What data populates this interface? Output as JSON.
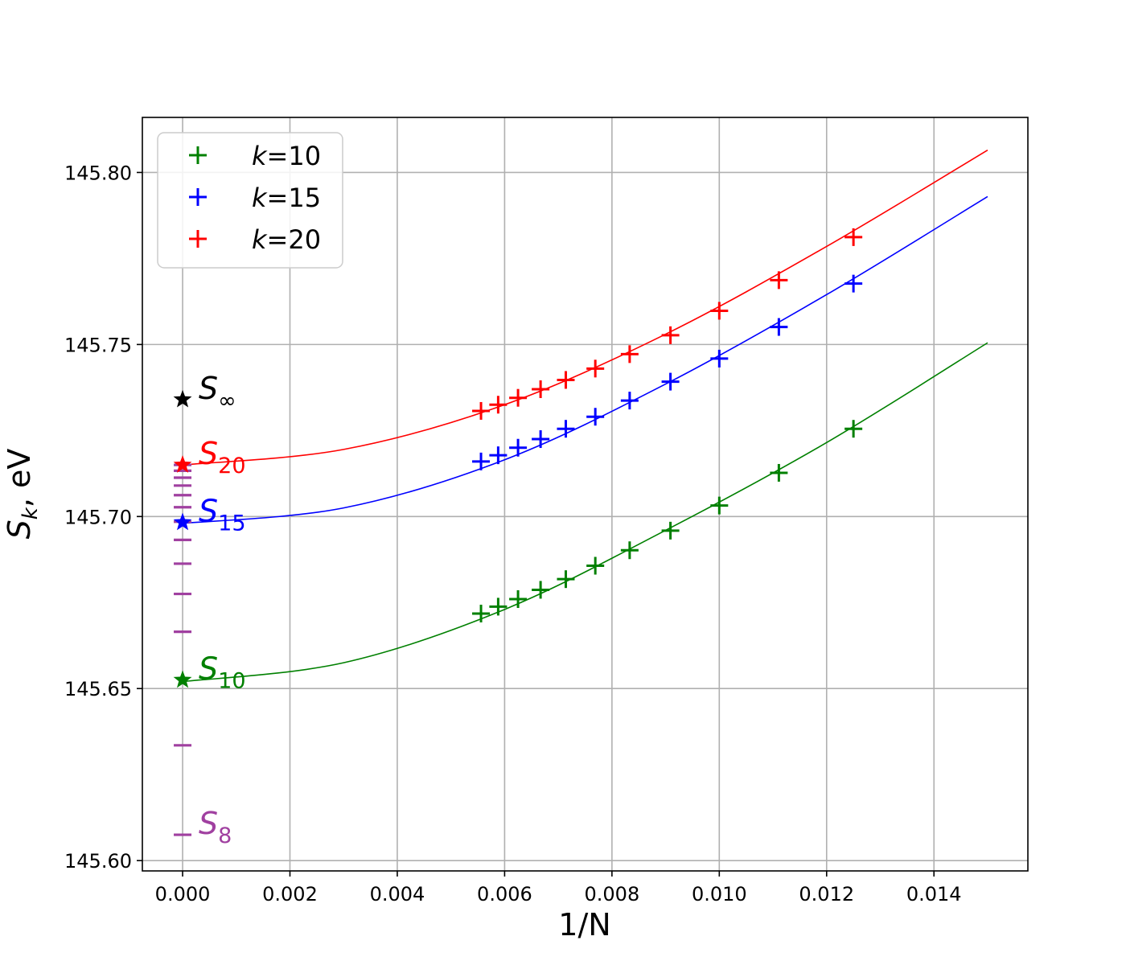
{
  "chart_data": {
    "type": "scatter",
    "xlabel": "1/N",
    "ylabel": "S_k, eV",
    "xlim": [
      -0.00075,
      0.01575
    ],
    "ylim": [
      145.597,
      145.816
    ],
    "xticks": [
      "0.000",
      "0.002",
      "0.004",
      "0.006",
      "0.008",
      "0.010",
      "0.012",
      "0.014"
    ],
    "xtick_values": [
      0.0,
      0.002,
      0.004,
      0.006,
      0.008,
      0.01,
      0.012,
      0.014
    ],
    "yticks": [
      "145.60",
      "145.65",
      "145.70",
      "145.75",
      "145.80"
    ],
    "ytick_values": [
      145.6,
      145.65,
      145.7,
      145.75,
      145.8
    ],
    "grid": true,
    "legend_position": "top-left",
    "series": [
      {
        "name": "k=10",
        "legend_k": "k",
        "legend_rest": "=10",
        "color": "#008000",
        "marker": "plus",
        "x": [
          0.0125,
          0.01111,
          0.01,
          0.00909,
          0.00833,
          0.00769,
          0.00714,
          0.00667,
          0.00625,
          0.00588,
          0.00556
        ],
        "y": [
          145.7255,
          145.7127,
          145.7032,
          145.6959,
          145.6902,
          145.6857,
          145.6818,
          145.6787,
          145.676,
          145.6738,
          145.6718
        ],
        "fit_curve": {
          "x": [
            0.0,
            0.003,
            0.006,
            0.009,
            0.012,
            0.015
          ],
          "y": [
            145.652,
            145.6575,
            145.673,
            145.696,
            145.7215,
            145.7505
          ]
        }
      },
      {
        "name": "k=15",
        "legend_k": "k",
        "legend_rest": "=15",
        "color": "#0000ff",
        "marker": "plus",
        "x": [
          0.0125,
          0.01111,
          0.01,
          0.00909,
          0.00833,
          0.00769,
          0.00714,
          0.00667,
          0.00625,
          0.00588,
          0.00556
        ],
        "y": [
          145.7677,
          145.7551,
          145.7459,
          145.7392,
          145.7337,
          145.729,
          145.7255,
          145.7225,
          145.72,
          145.7178,
          145.716
        ],
        "fit_curve": {
          "x": [
            0.0,
            0.003,
            0.006,
            0.009,
            0.012,
            0.015
          ],
          "y": [
            145.698,
            145.7025,
            145.7165,
            145.7385,
            145.7645,
            145.793
          ]
        }
      },
      {
        "name": "k=20",
        "legend_k": "k",
        "legend_rest": "=20",
        "color": "#ff0000",
        "marker": "plus",
        "x": [
          0.0125,
          0.01111,
          0.01,
          0.00909,
          0.00833,
          0.00769,
          0.00714,
          0.00667,
          0.00625,
          0.00588,
          0.00556
        ],
        "y": [
          145.7812,
          145.7687,
          145.7598,
          145.7527,
          145.7472,
          145.743,
          145.7397,
          145.737,
          145.7345,
          145.7325,
          145.7307
        ],
        "fit_curve": {
          "x": [
            0.0,
            0.003,
            0.006,
            0.009,
            0.012,
            0.015
          ],
          "y": [
            145.715,
            145.7195,
            145.7325,
            145.753,
            145.7785,
            145.8065
          ]
        }
      }
    ],
    "extrapolated_points": [
      {
        "label": "S",
        "sub": "∞",
        "x": 0.0,
        "y": 145.734,
        "color": "#000000",
        "marker": "star"
      },
      {
        "label": "S",
        "sub": "20",
        "x": 0.0,
        "y": 145.715,
        "color": "#ff0000",
        "marker": "star"
      },
      {
        "label": "S",
        "sub": "15",
        "x": 0.0,
        "y": 145.6983,
        "color": "#0000ff",
        "marker": "star"
      },
      {
        "label": "S",
        "sub": "10",
        "x": 0.0,
        "y": 145.6525,
        "color": "#008000",
        "marker": "star"
      },
      {
        "label": "S",
        "sub": "8",
        "x": 0.0,
        "y": 145.6075,
        "color": "#a040a0",
        "marker": "dash"
      }
    ],
    "dash_markers": {
      "color": "#a040a0",
      "x": 0.0,
      "y": [
        145.6075,
        145.6335,
        145.6665,
        145.6775,
        145.6863,
        145.6932,
        145.6985,
        145.7027,
        145.7062,
        145.709,
        145.7113,
        145.7133,
        145.715
      ]
    }
  }
}
